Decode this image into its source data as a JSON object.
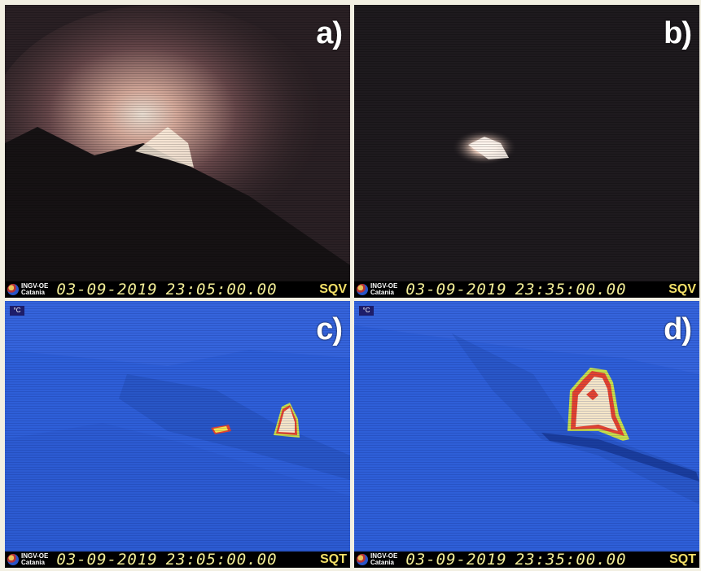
{
  "panels": [
    {
      "letter": "a)",
      "date": "03-09-2019",
      "time": "23:05:00.00",
      "camera": "SQV",
      "inst_line1": "INGV-OE",
      "inst_line2": "Catania"
    },
    {
      "letter": "b)",
      "date": "03-09-2019",
      "time": "23:35:00.00",
      "camera": "SQV",
      "inst_line1": "INGV-OE",
      "inst_line2": "Catania"
    },
    {
      "letter": "c)",
      "date": "03-09-2019",
      "time": "23:05:00.00",
      "camera": "SQT",
      "inst_line1": "INGV-OE",
      "inst_line2": "Catania",
      "unit": "°C"
    },
    {
      "letter": "d)",
      "date": "03-09-2019",
      "time": "23:35:00.00",
      "camera": "SQT",
      "inst_line1": "INGV-OE",
      "inst_line2": "Catania",
      "unit": "°C"
    }
  ],
  "colors": {
    "visible_sky": "#2a2024",
    "thermal_background": "#2e5fd8",
    "hot_core": "#f5e6c8",
    "hot_rim": "#e4432f",
    "timestamp": "#f3ee97"
  },
  "icons": [
    "institute-logo-icon"
  ]
}
